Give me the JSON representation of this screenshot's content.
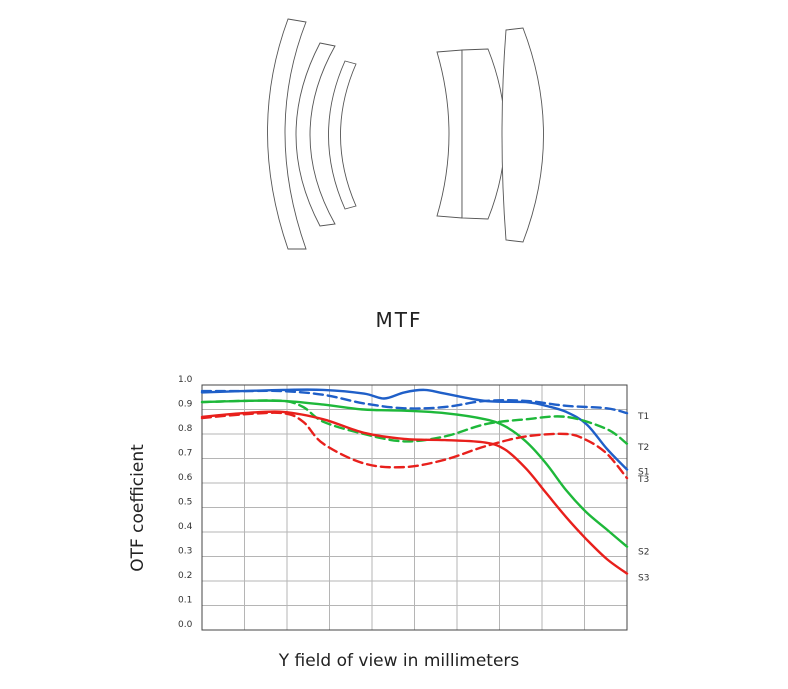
{
  "chart_data": {
    "type": "line",
    "title": "MTF",
    "xlabel": "Y field of view in millimeters",
    "ylabel": "OTF coefficient",
    "ylim": [
      0,
      1
    ],
    "xlim": [
      0,
      21
    ],
    "grid": true,
    "y_ticks": [
      "0.0",
      "0.1",
      "0.2",
      "0.3",
      "0.4",
      "0.5",
      "0.6",
      "0.7",
      "0.8",
      "0.9",
      "1.0"
    ],
    "legend": "labels at right end of curves",
    "series": [
      {
        "name": "T1",
        "color": "#1f5fc8",
        "dash": true,
        "x": [
          0,
          2,
          4,
          6,
          8,
          10,
          12,
          14,
          16,
          18,
          20,
          21
        ],
        "y": [
          0.975,
          0.975,
          0.975,
          0.96,
          0.925,
          0.905,
          0.91,
          0.935,
          0.935,
          0.915,
          0.905,
          0.885
        ]
      },
      {
        "name": "S1",
        "color": "#1f5fc8",
        "dash": false,
        "x": [
          0,
          2,
          4,
          6,
          8,
          9,
          10,
          11,
          12,
          14,
          16,
          17,
          18,
          19,
          20,
          21
        ],
        "y": [
          0.97,
          0.975,
          0.98,
          0.98,
          0.965,
          0.945,
          0.97,
          0.98,
          0.965,
          0.935,
          0.93,
          0.915,
          0.89,
          0.84,
          0.74,
          0.655
        ]
      },
      {
        "name": "T2",
        "color": "#1eb83a",
        "dash": true,
        "x": [
          0,
          2,
          4,
          5,
          6,
          8,
          10,
          12,
          14,
          16,
          18,
          20,
          21
        ],
        "y": [
          0.93,
          0.935,
          0.935,
          0.91,
          0.85,
          0.8,
          0.77,
          0.79,
          0.84,
          0.86,
          0.87,
          0.82,
          0.76
        ]
      },
      {
        "name": "S2",
        "color": "#1eb83a",
        "dash": false,
        "x": [
          0,
          2,
          4,
          6,
          8,
          10,
          12,
          14,
          15,
          16,
          17,
          18,
          19,
          20,
          21
        ],
        "y": [
          0.93,
          0.935,
          0.935,
          0.92,
          0.9,
          0.895,
          0.885,
          0.86,
          0.83,
          0.77,
          0.68,
          0.57,
          0.48,
          0.41,
          0.34
        ]
      },
      {
        "name": "T3",
        "color": "#e8201c",
        "dash": true,
        "x": [
          0,
          2,
          4,
          5,
          6,
          8,
          10,
          12,
          14,
          16,
          18,
          19,
          20,
          21
        ],
        "y": [
          0.865,
          0.88,
          0.885,
          0.85,
          0.76,
          0.68,
          0.665,
          0.695,
          0.75,
          0.79,
          0.8,
          0.775,
          0.72,
          0.62
        ]
      },
      {
        "name": "S3",
        "color": "#e8201c",
        "dash": false,
        "x": [
          0,
          2,
          4,
          6,
          8,
          10,
          12,
          14,
          15,
          16,
          17,
          18,
          19,
          20,
          21
        ],
        "y": [
          0.87,
          0.885,
          0.89,
          0.86,
          0.805,
          0.78,
          0.775,
          0.765,
          0.735,
          0.66,
          0.56,
          0.46,
          0.37,
          0.29,
          0.23
        ]
      }
    ]
  }
}
